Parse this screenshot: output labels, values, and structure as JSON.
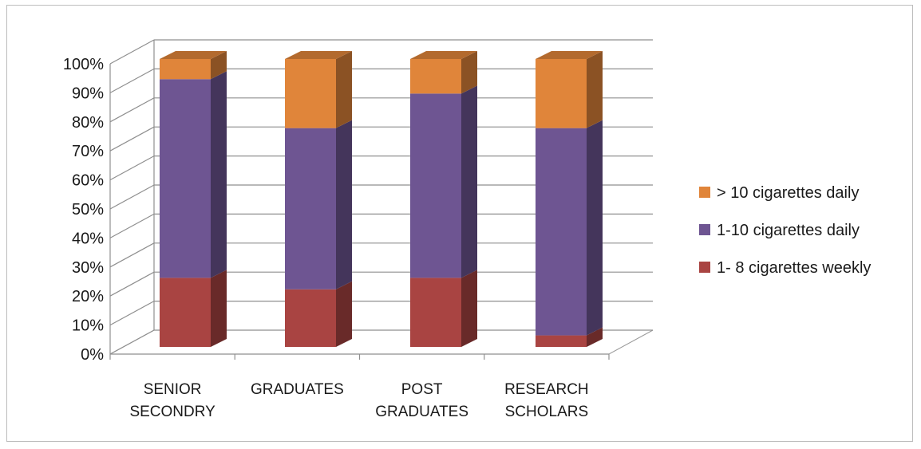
{
  "chart_data": {
    "type": "bar",
    "stacked": true,
    "three_d": true,
    "categories": [
      [
        "SENIOR",
        "SECONDRY"
      ],
      [
        "GRADUATES"
      ],
      [
        "POST",
        "GRADUATES"
      ],
      [
        "RESEARCH",
        "SCHOLARS"
      ]
    ],
    "series": [
      {
        "name": "1- 8 cigarettes weekly",
        "color": "#a94442",
        "values": [
          24,
          20,
          24,
          4
        ]
      },
      {
        "name": "1-10 cigarettes daily",
        "color": "#6e5592",
        "values": [
          69,
          56,
          64,
          72
        ]
      },
      {
        "name": "> 10 cigarettes daily",
        "color": "#e0853a",
        "values": [
          7,
          24,
          12,
          24
        ]
      }
    ],
    "ylim": [
      0,
      100
    ],
    "yticks": [
      "0%",
      "10%",
      "20%",
      "30%",
      "40%",
      "50%",
      "60%",
      "70%",
      "80%",
      "90%",
      "100%"
    ],
    "grid": true,
    "legend_position": "right",
    "legend_order": [
      "> 10 cigarettes daily",
      "1-10 cigarettes daily",
      "1- 8 cigarettes weekly"
    ],
    "title": "",
    "xlabel": "",
    "ylabel": ""
  }
}
